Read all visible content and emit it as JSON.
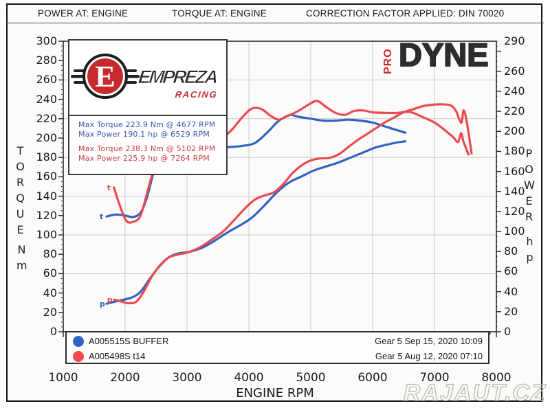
{
  "header": {
    "power_at": "POWER AT: ENGINE",
    "torque_at": "TORQUE AT: ENGINE",
    "correction": "CORRECTION FACTOR APPLIED: DIN 70020"
  },
  "logo": {
    "letter": "E",
    "brand": "EMPREZA",
    "sub": "RACING"
  },
  "branding": {
    "pro": "PRO",
    "dyne": "DYNE"
  },
  "stats": {
    "run1_torque": "Max Torque 223.9 Nm @ 4677 RPM",
    "run1_power": "Max Power 190.1 hp @ 6529 RPM",
    "run2_torque": "Max Torque 238.3 Nm @ 5102 RPM",
    "run2_power": "Max Power 225.9 hp @ 7264 RPM"
  },
  "legend": {
    "rows": [
      {
        "label": "A005515S BUFFER",
        "info": "Gear 5 Sep 15, 2020 10:09",
        "color": "#2f62c8"
      },
      {
        "label": "A005498S t14",
        "info": "Gear 5 Aug 12, 2020 07:10",
        "color": "#f2494f"
      }
    ]
  },
  "watermark": "RAJAUT.CZ",
  "colors": {
    "blue": "#3163c3",
    "red": "#e94b53",
    "grid": "#c9c9c9",
    "frame": "#2a2a2a"
  },
  "chart_data": {
    "type": "line",
    "title": "",
    "xlabel": "ENGINE RPM",
    "x_range": [
      1000,
      8000
    ],
    "x_tick_labels": [
      1000,
      2000,
      3000,
      4000,
      5000,
      6000,
      7000,
      8000
    ],
    "y_left": {
      "label": "TORQUE",
      "unit": "Nm",
      "range": [
        0,
        300
      ],
      "tick_labels": [
        0,
        20,
        40,
        60,
        80,
        100,
        120,
        140,
        160,
        180,
        200,
        220,
        240,
        260,
        280,
        300
      ]
    },
    "y_right": {
      "label": "POWER",
      "unit": "hp",
      "range": [
        0,
        290
      ],
      "tick_labels": [
        0,
        20,
        40,
        60,
        80,
        100,
        120,
        140,
        160,
        180,
        200,
        220,
        240,
        260,
        290
      ]
    },
    "grid": {
      "vertical_rpm": [
        2000,
        3000,
        4000,
        5000,
        6000,
        7000
      ],
      "horizontal_left_values": [
        60,
        100,
        140,
        180,
        220,
        260
      ]
    },
    "legend_position": "bottom",
    "series": [
      {
        "name": "A005515S BUFFER torque",
        "axis": "left",
        "color": "#3163c3",
        "start_marker": "t",
        "points": [
          [
            1700,
            119
          ],
          [
            1850,
            121
          ],
          [
            2000,
            120
          ],
          [
            2130,
            118.5
          ],
          [
            2250,
            123
          ],
          [
            2350,
            138
          ],
          [
            2480,
            168
          ],
          [
            2620,
            181
          ],
          [
            2800,
            186
          ],
          [
            3100,
            188
          ],
          [
            3400,
            189
          ],
          [
            3650,
            190.5
          ],
          [
            3900,
            192
          ],
          [
            4100,
            195
          ],
          [
            4300,
            206
          ],
          [
            4450,
            216
          ],
          [
            4560,
            221
          ],
          [
            4677,
            223.9
          ],
          [
            4800,
            222
          ],
          [
            5000,
            220
          ],
          [
            5200,
            218
          ],
          [
            5400,
            218
          ],
          [
            5600,
            219
          ],
          [
            5800,
            218
          ],
          [
            6000,
            216
          ],
          [
            6200,
            212
          ],
          [
            6350,
            209
          ],
          [
            6530,
            205.5
          ]
        ]
      },
      {
        "name": "A005498S t14 torque",
        "axis": "left",
        "color": "#e94b53",
        "start_marker": "t",
        "points": [
          [
            1820,
            149
          ],
          [
            1900,
            133
          ],
          [
            2020,
            114.5
          ],
          [
            2150,
            114
          ],
          [
            2250,
            120
          ],
          [
            2350,
            142
          ],
          [
            2480,
            170
          ],
          [
            2650,
            184
          ],
          [
            2900,
            191
          ],
          [
            3200,
            195
          ],
          [
            3500,
            198
          ],
          [
            3700,
            207
          ],
          [
            3900,
            222
          ],
          [
            4050,
            230.5
          ],
          [
            4200,
            230
          ],
          [
            4350,
            223
          ],
          [
            4480,
            219
          ],
          [
            4600,
            222
          ],
          [
            4800,
            228
          ],
          [
            4950,
            234
          ],
          [
            5102,
            238.3
          ],
          [
            5250,
            232
          ],
          [
            5400,
            226
          ],
          [
            5550,
            224
          ],
          [
            5700,
            228
          ],
          [
            5850,
            228.5
          ],
          [
            6000,
            226.5
          ],
          [
            6200,
            226
          ],
          [
            6400,
            226
          ],
          [
            6600,
            227
          ],
          [
            6800,
            222
          ],
          [
            7000,
            216
          ],
          [
            7150,
            209
          ],
          [
            7300,
            201
          ],
          [
            7380,
            196
          ],
          [
            7430,
            205
          ],
          [
            7470,
            196
          ],
          [
            7550,
            183
          ]
        ]
      },
      {
        "name": "A005515S BUFFER power",
        "axis": "right",
        "color": "#3163c3",
        "start_marker": "p",
        "points": [
          [
            1700,
            28
          ],
          [
            1900,
            31
          ],
          [
            2100,
            34
          ],
          [
            2250,
            40
          ],
          [
            2400,
            53
          ],
          [
            2550,
            65
          ],
          [
            2700,
            74
          ],
          [
            2850,
            78
          ],
          [
            3050,
            80
          ],
          [
            3250,
            84
          ],
          [
            3450,
            91
          ],
          [
            3650,
            99
          ],
          [
            3850,
            106
          ],
          [
            4050,
            114
          ],
          [
            4250,
            126
          ],
          [
            4450,
            139
          ],
          [
            4650,
            149
          ],
          [
            4850,
            155
          ],
          [
            5050,
            161
          ],
          [
            5250,
            165
          ],
          [
            5450,
            169
          ],
          [
            5650,
            174
          ],
          [
            5850,
            179
          ],
          [
            6050,
            184
          ],
          [
            6250,
            187
          ],
          [
            6400,
            189
          ],
          [
            6530,
            190.1
          ]
        ]
      },
      {
        "name": "A005498S t14 power",
        "axis": "right",
        "color": "#e94b53",
        "start_marker": "p",
        "points": [
          [
            1820,
            32
          ],
          [
            1950,
            30
          ],
          [
            2050,
            28.5
          ],
          [
            2180,
            30
          ],
          [
            2300,
            40
          ],
          [
            2430,
            55
          ],
          [
            2560,
            66
          ],
          [
            2700,
            74
          ],
          [
            2850,
            77
          ],
          [
            3000,
            79
          ],
          [
            3200,
            84
          ],
          [
            3400,
            92
          ],
          [
            3600,
            101
          ],
          [
            3800,
            114
          ],
          [
            3950,
            124
          ],
          [
            4100,
            132
          ],
          [
            4250,
            136
          ],
          [
            4400,
            139
          ],
          [
            4550,
            147
          ],
          [
            4700,
            158
          ],
          [
            4850,
            166
          ],
          [
            5000,
            171
          ],
          [
            5150,
            173
          ],
          [
            5300,
            173.5
          ],
          [
            5450,
            177
          ],
          [
            5600,
            184
          ],
          [
            5750,
            191
          ],
          [
            5900,
            197
          ],
          [
            6050,
            203
          ],
          [
            6200,
            209
          ],
          [
            6350,
            214
          ],
          [
            6500,
            219
          ],
          [
            6650,
            222
          ],
          [
            6800,
            225
          ],
          [
            6950,
            226.5
          ],
          [
            7100,
            227
          ],
          [
            7264,
            225.9
          ],
          [
            7350,
            220
          ],
          [
            7400,
            212
          ],
          [
            7440,
            209
          ],
          [
            7470,
            221
          ],
          [
            7520,
            210
          ],
          [
            7600,
            178
          ]
        ]
      }
    ],
    "annotations": {
      "max_torque_run1": {
        "value_nm": 223.9,
        "rpm": 4677
      },
      "max_power_run1": {
        "value_hp": 190.1,
        "rpm": 6529
      },
      "max_torque_run2": {
        "value_nm": 238.3,
        "rpm": 5102
      },
      "max_power_run2": {
        "value_hp": 225.9,
        "rpm": 7264
      }
    }
  }
}
